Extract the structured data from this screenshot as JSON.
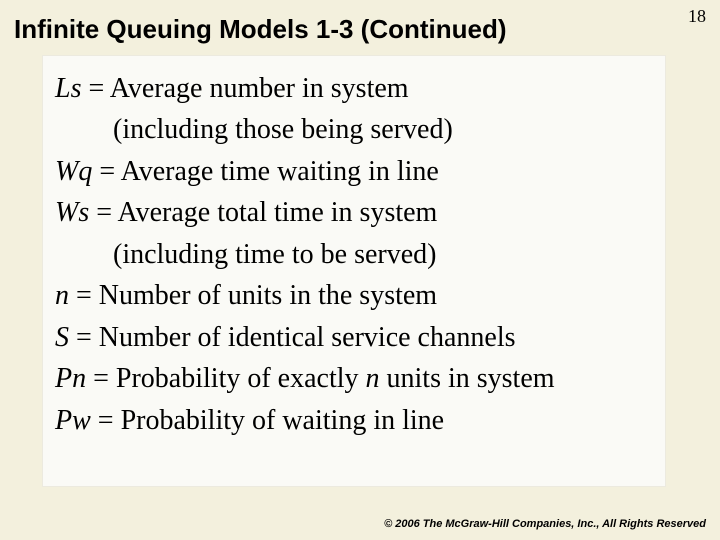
{
  "page_number": "18",
  "title": "Infinite Queuing Models 1-3 (Continued)",
  "defs": {
    "ls_sym": "Ls",
    "ls_eq": " = Average number in system",
    "ls_sub": "(including those being served)",
    "wq_sym": "Wq",
    "wq_eq": " = Average time waiting in line",
    "ws_sym": "Ws",
    "ws_eq": " = Average total time in system",
    "ws_sub": "(including time to be served)",
    "n_sym": "n",
    "n_eq": " = Number of units in the system",
    "s_sym": "S",
    "s_eq": " = Number of identical service channels",
    "pn_sym": "Pn",
    "pn_eq_a": " = Probability of exactly ",
    "pn_eq_ital": "n",
    "pn_eq_b": " units in system",
    "pw_sym": "Pw",
    "pw_eq": " = Probability of waiting in line"
  },
  "copyright": "© 2006 The McGraw-Hill Companies, Inc., All Rights Reserved",
  "colors": {
    "slide_bg": "#f3f0dd",
    "content_bg": "#fafaf6",
    "text": "#000000"
  }
}
